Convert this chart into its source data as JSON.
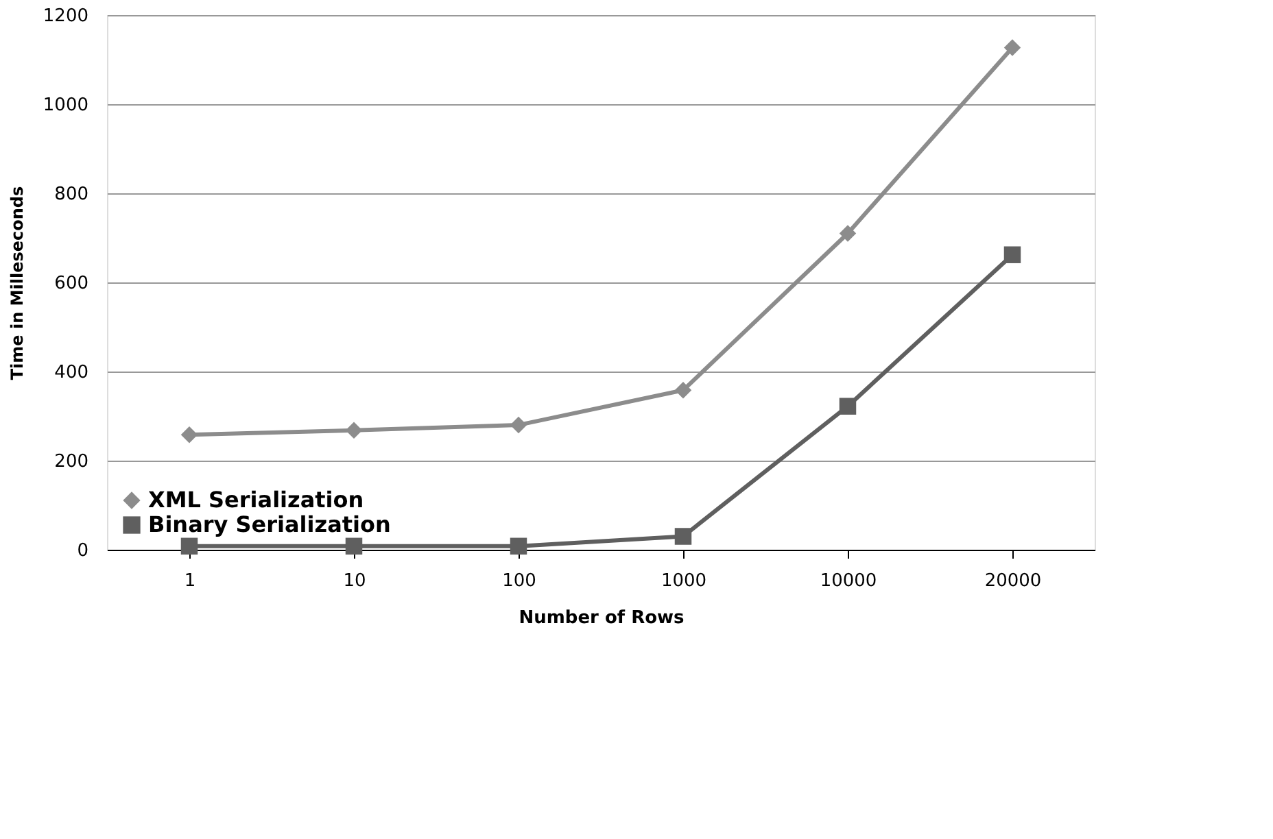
{
  "chart_data": {
    "type": "line",
    "xlabel": "Number of Rows",
    "ylabel": "Time in  Milleseconds",
    "categories": [
      "1",
      "10",
      "100",
      "1000",
      "10000",
      "20000"
    ],
    "series": [
      {
        "name": "XML Serialization",
        "color": "#8c8c8c",
        "marker": "diamond",
        "values": [
          258,
          268,
          280,
          358,
          710,
          1127
        ]
      },
      {
        "name": "Binary Serialization",
        "color": "#5f5f5f",
        "marker": "square",
        "values": [
          8,
          8,
          8,
          30,
          322,
          662
        ]
      }
    ],
    "ylim": [
      0,
      1200
    ],
    "yticks": [
      0,
      200,
      400,
      600,
      800,
      1000,
      1200
    ],
    "grid": "y",
    "legend": "bottom left",
    "line_style": "solid"
  }
}
